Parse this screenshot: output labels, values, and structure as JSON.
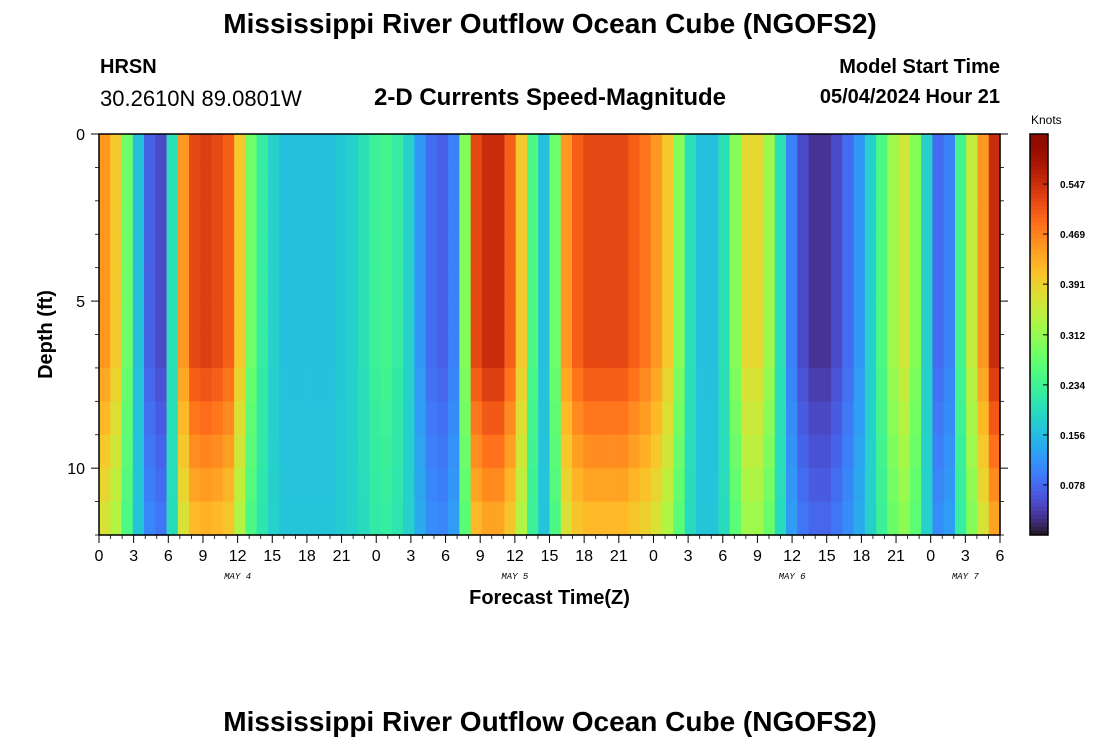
{
  "title": "Mississippi River Outflow Ocean Cube (NGOFS2)",
  "station": {
    "name": "HRSN",
    "coords": "30.2610N  89.0801W"
  },
  "variable": "2-D Currents Speed-Magnitude",
  "model_start": {
    "label": "Model Start Time",
    "value": "05/04/2024 Hour 21"
  },
  "chart_data": {
    "type": "heatmap",
    "title": "2-D Currents Speed-Magnitude",
    "xlabel": "Forecast Time(Z)",
    "ylabel": "Depth (ft)",
    "x_start_hour": 0,
    "x_end_hour": 78,
    "x_tick_step_hours": 3,
    "x_tick_labels": [
      "0",
      "3",
      "6",
      "9",
      "12",
      "15",
      "18",
      "21",
      "0",
      "3",
      "6",
      "9",
      "12",
      "15",
      "18",
      "21",
      "0",
      "3",
      "6",
      "9",
      "12",
      "15",
      "18",
      "21",
      "0",
      "3",
      "6"
    ],
    "day_labels": [
      {
        "hour": 12,
        "label": "MAY 4"
      },
      {
        "hour": 36,
        "label": "MAY 5"
      },
      {
        "hour": 60,
        "label": "MAY 6"
      },
      {
        "hour": 75,
        "label": "MAY 7"
      }
    ],
    "ylim": [
      0,
      12
    ],
    "y_ticks": [
      0,
      5,
      10
    ],
    "y_tick_labels": [
      "0",
      "5",
      "10"
    ],
    "colorbar": {
      "units": "Knots",
      "range": [
        0.0,
        0.625
      ],
      "ticks": [
        0.078,
        0.156,
        0.234,
        0.312,
        0.391,
        0.469,
        0.547
      ],
      "tick_labels": [
        "0.078",
        "0.156",
        "0.234",
        "0.312",
        "0.391",
        "0.469",
        "0.547"
      ],
      "colormap": "turbo"
    },
    "depth_rows": 12,
    "surface_speed_knots": [
      0.45,
      0.4,
      0.28,
      0.16,
      0.07,
      0.05,
      0.2,
      0.45,
      0.52,
      0.53,
      0.52,
      0.5,
      0.4,
      0.28,
      0.22,
      0.18,
      0.16,
      0.16,
      0.16,
      0.16,
      0.16,
      0.17,
      0.18,
      0.2,
      0.23,
      0.24,
      0.22,
      0.18,
      0.12,
      0.08,
      0.07,
      0.1,
      0.3,
      0.52,
      0.55,
      0.55,
      0.5,
      0.4,
      0.25,
      0.16,
      0.28,
      0.45,
      0.5,
      0.52,
      0.52,
      0.52,
      0.52,
      0.5,
      0.48,
      0.45,
      0.4,
      0.3,
      0.2,
      0.16,
      0.16,
      0.2,
      0.3,
      0.38,
      0.38,
      0.32,
      0.2,
      0.1,
      0.05,
      0.03,
      0.03,
      0.05,
      0.08,
      0.12,
      0.18,
      0.25,
      0.32,
      0.36,
      0.3,
      0.18,
      0.08,
      0.1,
      0.24,
      0.35,
      0.45,
      0.55
    ],
    "depth_profile": [
      {
        "rows": [
          0,
          6
        ],
        "mode": "uniform"
      },
      {
        "rows": [
          7,
          11
        ],
        "mode": "attenuated_toward_bottom"
      }
    ]
  }
}
